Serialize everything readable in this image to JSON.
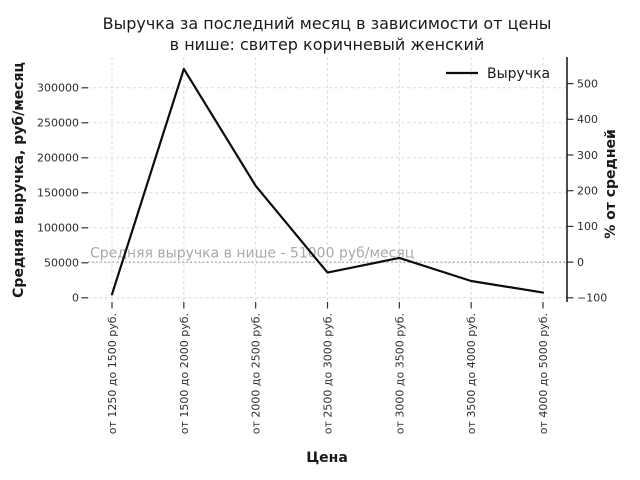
{
  "figure": {
    "background": "#ffffff"
  },
  "chart_data": {
    "type": "line",
    "title_lines": [
      "Выручка за последний месяц в зависимости от цены",
      "в нише: свитер коричневый женский"
    ],
    "xlabel": "Цена",
    "ylabel_left": "Средняя выручка, руб/месяц",
    "ylabel_right": "% от средней",
    "categories": [
      "от 1250 до 1500 руб.",
      "от 1500 до 2000 руб.",
      "от 2000 до 2500 руб.",
      "от 2500 до 3000 руб.",
      "от 3000 до 3500 руб.",
      "от 3500 до 4000 руб.",
      "от 4000 до 5000 руб."
    ],
    "series": [
      {
        "name": "Выручка",
        "color": "#0d0d0d",
        "values": [
          5000,
          327000,
          160000,
          36000,
          57000,
          24000,
          7500
        ]
      }
    ],
    "y_left": {
      "ticks": [
        0,
        50000,
        100000,
        150000,
        200000,
        250000,
        300000
      ],
      "range": [
        -6000,
        344000
      ]
    },
    "y_right": {
      "ticks": [
        -100,
        0,
        100,
        200,
        300,
        400,
        500
      ],
      "unit": "%",
      "relative_to": 51000
    },
    "average_line": {
      "value": 51000,
      "label": "Средняя выручка в нише - 51000 руб/месяц",
      "style": "dotted",
      "color": "#a9a9a9"
    },
    "legend": {
      "position": "top-right",
      "frame": false,
      "entries": [
        {
          "label": "Выручка",
          "color": "#0d0d0d"
        }
      ]
    },
    "grid": {
      "show": true,
      "style": "dashed",
      "color": "#dadada"
    }
  }
}
